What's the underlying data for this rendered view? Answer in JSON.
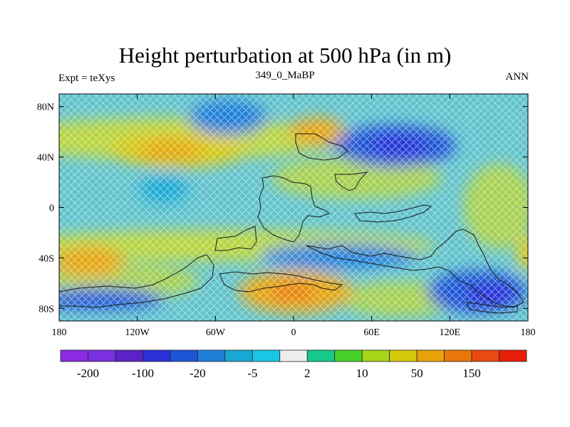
{
  "title": "Height perturbation at 500 hPa (in m)",
  "left_label": "Expt = teXys",
  "center_label": "349_0_MaBP",
  "right_label": "ANN",
  "map": {
    "lon_range": [
      -180,
      180
    ],
    "lat_range": [
      -90,
      90
    ],
    "lat_ticks": [
      {
        "value": 80,
        "label": "80N"
      },
      {
        "value": 40,
        "label": "40N"
      },
      {
        "value": 0,
        "label": "0"
      },
      {
        "value": -40,
        "label": "40S"
      },
      {
        "value": -80,
        "label": "80S"
      }
    ],
    "lon_ticks": [
      {
        "value": -180,
        "label": "180"
      },
      {
        "value": -120,
        "label": "120W"
      },
      {
        "value": -60,
        "label": "60W"
      },
      {
        "value": 0,
        "label": "0"
      },
      {
        "value": 60,
        "label": "60E"
      },
      {
        "value": 120,
        "label": "120E"
      },
      {
        "value": 180,
        "label": "180"
      }
    ],
    "background_color": "#5fc2cd"
  },
  "colorbar": {
    "colors": [
      "#8a2be2",
      "#7a2fe0",
      "#5a22c8",
      "#2a2fd8",
      "#1e55d6",
      "#1f7fd8",
      "#17a8d6",
      "#18c6e4",
      "#eeeeee",
      "#16c98a",
      "#48d128",
      "#a8d41a",
      "#d4c80a",
      "#e8a30a",
      "#e8770a",
      "#ea4a10",
      "#e8200a"
    ],
    "labels": [
      {
        "boundary": 1,
        "text": "-200"
      },
      {
        "boundary": 3,
        "text": "-100"
      },
      {
        "boundary": 5,
        "text": "-20"
      },
      {
        "boundary": 7,
        "text": "-5"
      },
      {
        "boundary": 9,
        "text": "2"
      },
      {
        "boundary": 11,
        "text": "10"
      },
      {
        "boundary": 13,
        "text": "50"
      },
      {
        "boundary": 15,
        "text": "150"
      }
    ]
  }
}
